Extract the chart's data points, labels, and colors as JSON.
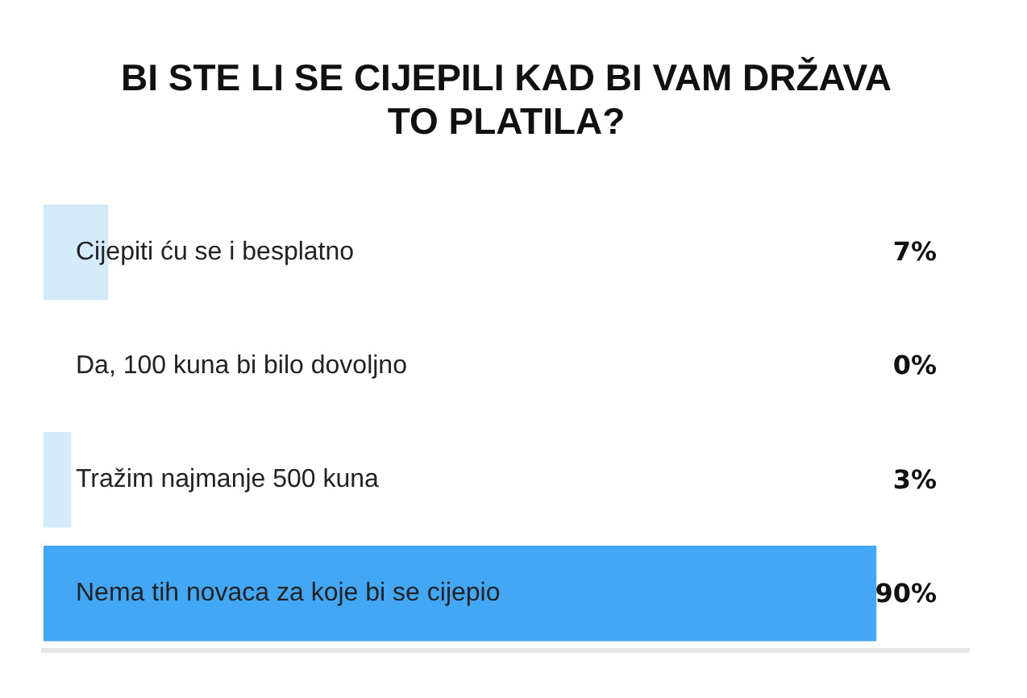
{
  "chart_data": {
    "type": "bar",
    "orientation": "horizontal",
    "title": "BI STE LI SE CIJEPILI KAD BI VAM DRŽAVA TO PLATILA?",
    "categories": [
      "Cijepiti ću se i besplatno",
      "Da, 100 kuna bi bilo dovoljno",
      "Tražim najmanje 500 kuna",
      "Nema tih novaca za koje bi se cijepio"
    ],
    "values": [
      7,
      0,
      3,
      90
    ],
    "colors": [
      "#d4ebfb",
      "#d4ebfb",
      "#d4ebfb",
      "#42a8f5"
    ],
    "value_labels": [
      "7%",
      "0%",
      "3%",
      "90%"
    ],
    "xlim": [
      0,
      100
    ],
    "tick_labels": "y",
    "grid": false,
    "legend": false
  }
}
